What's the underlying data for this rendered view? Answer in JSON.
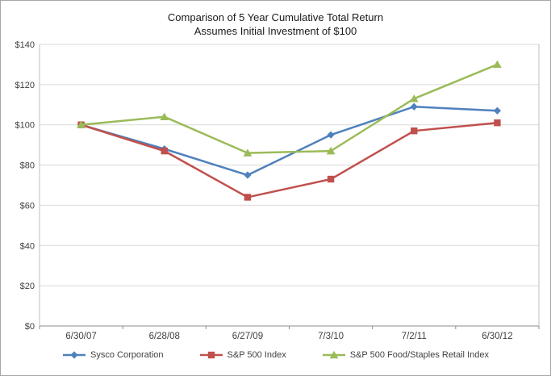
{
  "title": {
    "line1": "Comparison of 5 Year Cumulative Total Return",
    "line2": "Assumes Initial Investment of $100"
  },
  "chart_data": {
    "type": "line",
    "title": "Comparison of 5 Year Cumulative Total Return",
    "subtitle": "Assumes Initial Investment of $100",
    "categories": [
      "6/30/07",
      "6/28/08",
      "6/27/09",
      "7/3/10",
      "7/2/11",
      "6/30/12"
    ],
    "series": [
      {
        "name": "Sysco Corporation",
        "marker": "diamond",
        "color": "#4F81BD",
        "values": [
          100,
          88,
          75,
          95,
          109,
          107
        ]
      },
      {
        "name": "S&P 500 Index",
        "marker": "square",
        "color": "#C0504D",
        "values": [
          100,
          87,
          64,
          73,
          97,
          101
        ]
      },
      {
        "name": "S&P 500 Food/Staples Retail Index",
        "marker": "triangle",
        "color": "#9BBB59",
        "values": [
          100,
          104,
          86,
          87,
          113,
          130
        ]
      }
    ],
    "xlabel": "",
    "ylabel": "",
    "ylim": [
      0,
      140
    ],
    "ytick_step": 20,
    "ytick_labels": [
      "$0",
      "$20",
      "$40",
      "$60",
      "$80",
      "$100",
      "$120",
      "$140"
    ],
    "grid": "horizontal",
    "legend_position": "bottom"
  },
  "colors": {
    "gridline": "#d9d9d9",
    "axis": "#8c8c8c",
    "plot_border": "#bfbfbf",
    "frame_border": "#a6a6a6",
    "text": "#404040",
    "title_text": "#1a1a1a"
  }
}
